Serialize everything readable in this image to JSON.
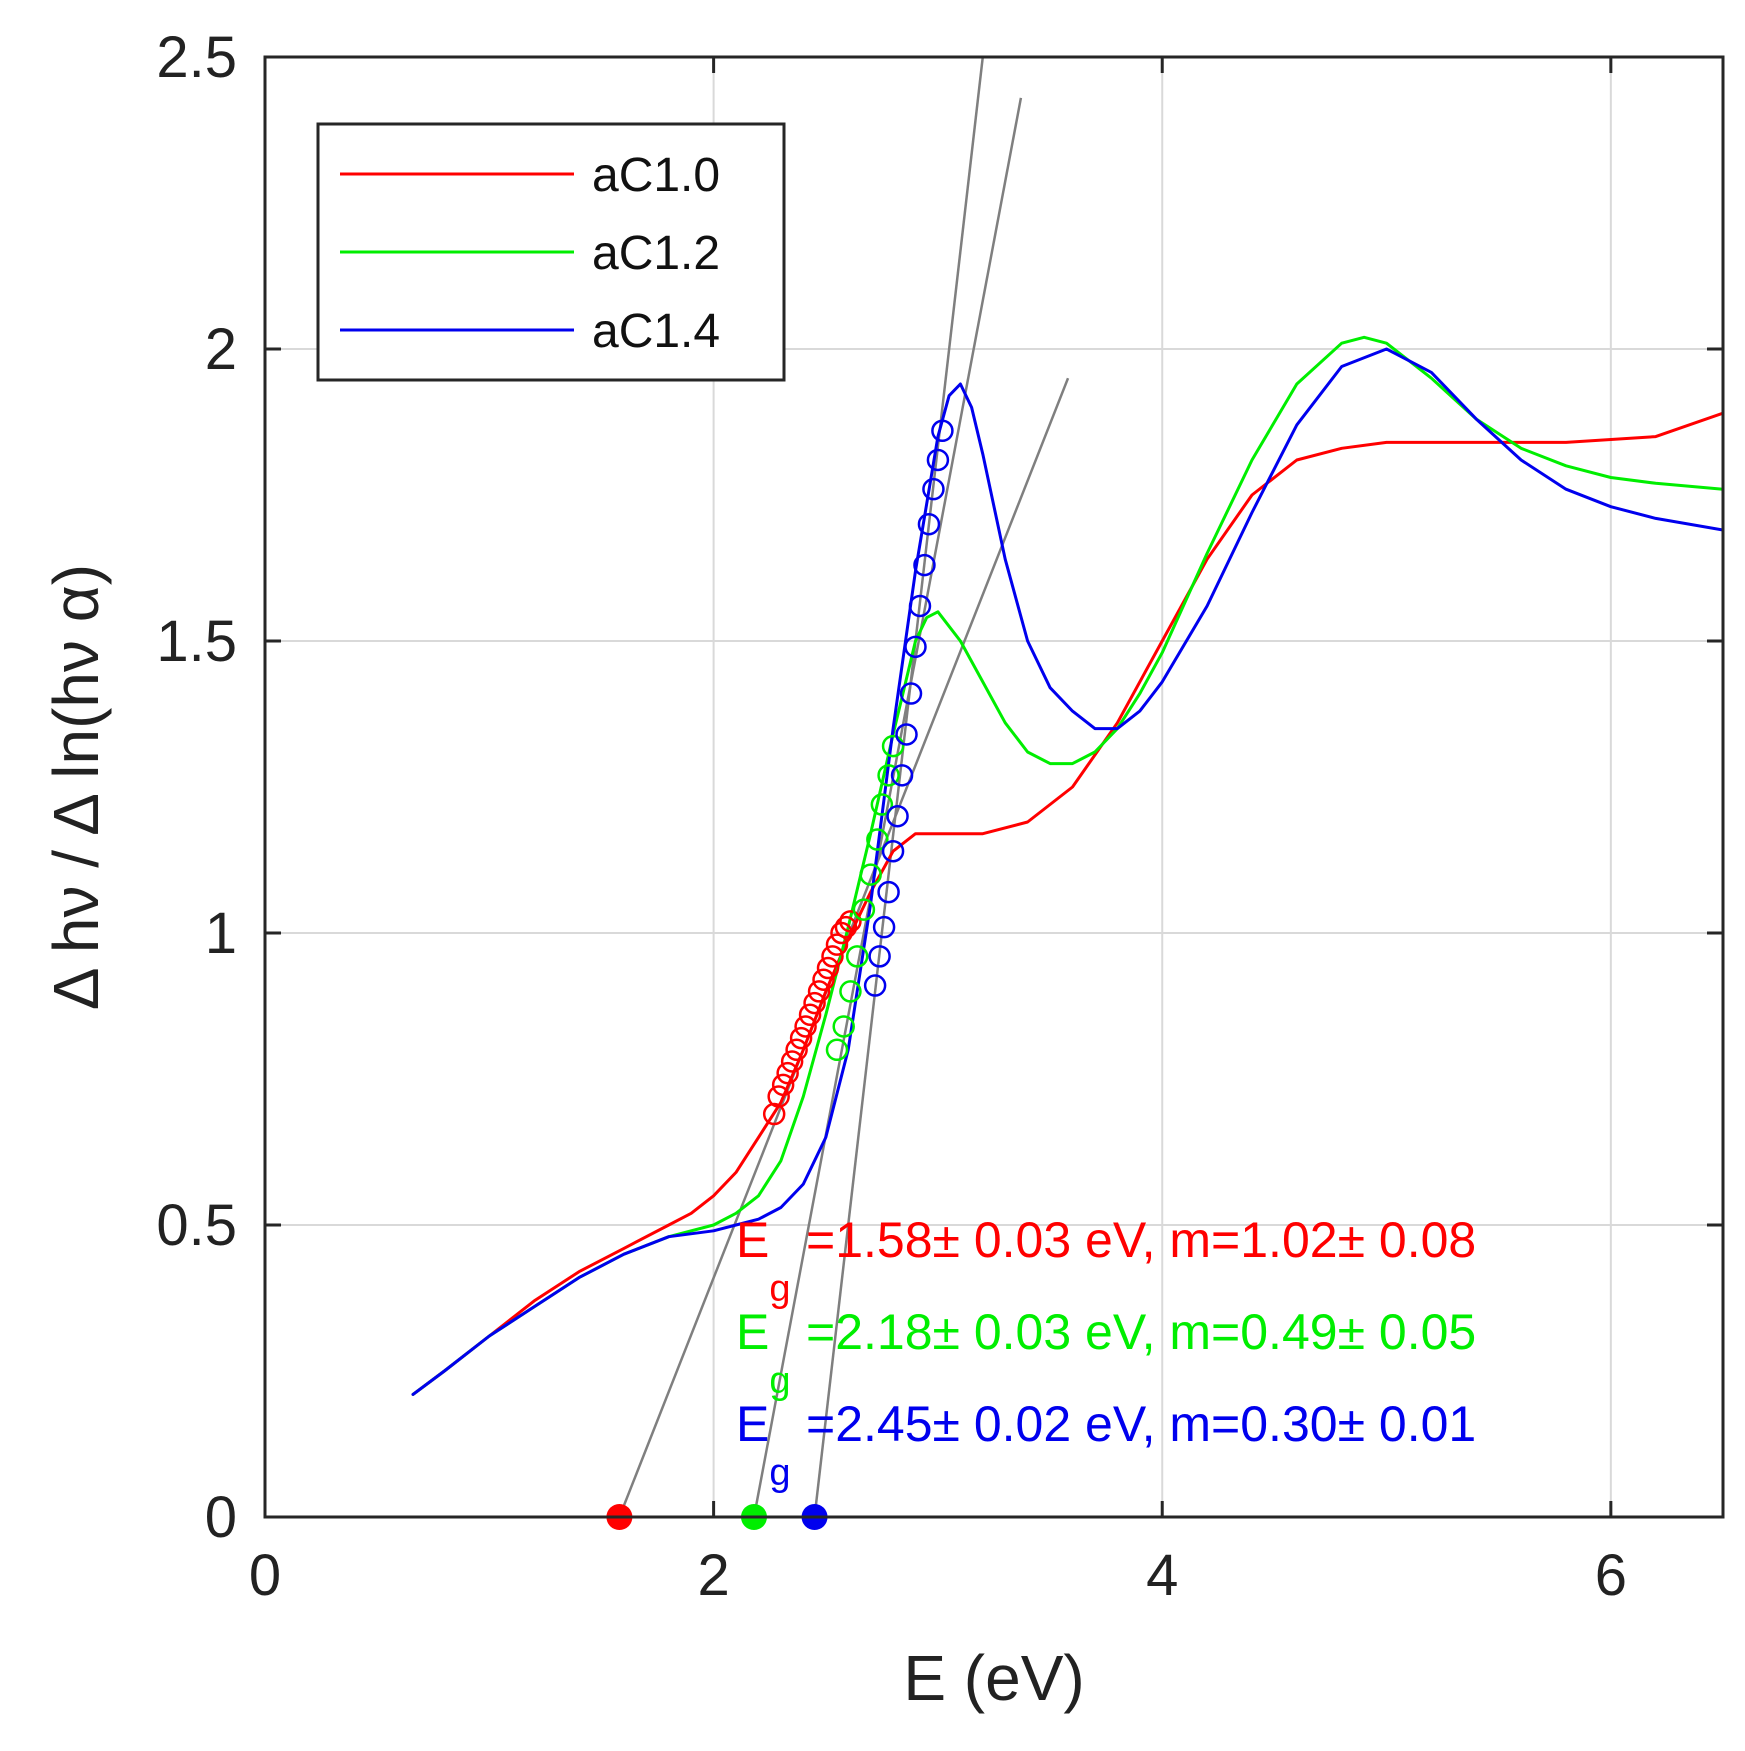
{
  "chart_data": {
    "type": "line",
    "title": "",
    "xlabel": "E (eV)",
    "ylabel": "Δ hν / Δ ln(hν α)",
    "xlim": [
      0,
      6.5
    ],
    "ylim": [
      0,
      2.5
    ],
    "xticks": [
      0,
      2,
      4,
      6
    ],
    "xtick_labels": [
      "0",
      "2",
      "4",
      "6"
    ],
    "yticks": [
      0,
      0.5,
      1,
      1.5,
      2,
      2.5
    ],
    "ytick_labels": [
      "0",
      "0.5",
      "1",
      "1.5",
      "2",
      "2.5"
    ],
    "grid": true,
    "legend_position": "top-left",
    "series": [
      {
        "name": "aC1.0",
        "color": "#ff0000",
        "x": [
          0.66,
          0.8,
          1.0,
          1.2,
          1.4,
          1.6,
          1.8,
          1.9,
          2.0,
          2.1,
          2.2,
          2.3,
          2.4,
          2.5,
          2.6,
          2.7,
          2.8,
          2.9,
          3.0,
          3.2,
          3.4,
          3.6,
          3.8,
          4.0,
          4.2,
          4.4,
          4.6,
          4.8,
          5.0,
          5.4,
          5.8,
          6.2,
          6.5
        ],
        "y": [
          0.21,
          0.25,
          0.31,
          0.37,
          0.42,
          0.46,
          0.5,
          0.52,
          0.55,
          0.59,
          0.65,
          0.71,
          0.8,
          0.9,
          0.99,
          1.07,
          1.14,
          1.17,
          1.17,
          1.17,
          1.19,
          1.25,
          1.36,
          1.5,
          1.64,
          1.75,
          1.81,
          1.83,
          1.84,
          1.84,
          1.84,
          1.85,
          1.89
        ]
      },
      {
        "name": "aC1.2",
        "color": "#00ee00",
        "x": [
          0.66,
          0.8,
          1.0,
          1.2,
          1.4,
          1.6,
          1.8,
          2.0,
          2.1,
          2.2,
          2.3,
          2.4,
          2.5,
          2.6,
          2.7,
          2.8,
          2.9,
          2.95,
          3.0,
          3.1,
          3.2,
          3.3,
          3.4,
          3.5,
          3.6,
          3.7,
          3.8,
          3.9,
          4.0,
          4.2,
          4.4,
          4.6,
          4.8,
          4.9,
          5.0,
          5.2,
          5.4,
          5.6,
          5.8,
          6.0,
          6.2,
          6.5
        ],
        "y": [
          0.21,
          0.25,
          0.31,
          0.36,
          0.41,
          0.45,
          0.48,
          0.5,
          0.52,
          0.55,
          0.61,
          0.72,
          0.86,
          1.01,
          1.17,
          1.34,
          1.5,
          1.54,
          1.55,
          1.5,
          1.43,
          1.36,
          1.31,
          1.29,
          1.29,
          1.31,
          1.35,
          1.41,
          1.48,
          1.65,
          1.81,
          1.94,
          2.01,
          2.02,
          2.01,
          1.95,
          1.88,
          1.83,
          1.8,
          1.78,
          1.77,
          1.76
        ]
      },
      {
        "name": "aC1.4",
        "color": "#0000ee",
        "x": [
          0.66,
          0.8,
          1.0,
          1.2,
          1.4,
          1.6,
          1.8,
          2.0,
          2.1,
          2.2,
          2.3,
          2.4,
          2.5,
          2.6,
          2.7,
          2.8,
          2.9,
          3.0,
          3.05,
          3.1,
          3.15,
          3.2,
          3.3,
          3.4,
          3.5,
          3.6,
          3.7,
          3.8,
          3.9,
          4.0,
          4.2,
          4.4,
          4.6,
          4.8,
          5.0,
          5.2,
          5.4,
          5.6,
          5.8,
          6.0,
          6.2,
          6.5
        ],
        "y": [
          0.21,
          0.25,
          0.31,
          0.36,
          0.41,
          0.45,
          0.48,
          0.49,
          0.5,
          0.51,
          0.53,
          0.57,
          0.65,
          0.8,
          1.05,
          1.35,
          1.62,
          1.85,
          1.92,
          1.94,
          1.9,
          1.82,
          1.64,
          1.5,
          1.42,
          1.38,
          1.35,
          1.35,
          1.38,
          1.43,
          1.56,
          1.72,
          1.87,
          1.97,
          2.0,
          1.96,
          1.88,
          1.81,
          1.76,
          1.73,
          1.71,
          1.69
        ]
      }
    ],
    "fit_points": [
      {
        "series": "aC1.0",
        "color": "#ff0000",
        "x": [
          2.27,
          2.29,
          2.31,
          2.33,
          2.35,
          2.37,
          2.39,
          2.41,
          2.43,
          2.45,
          2.47,
          2.49,
          2.51,
          2.53,
          2.55,
          2.57,
          2.59,
          2.61
        ],
        "y": [
          0.69,
          0.72,
          0.74,
          0.76,
          0.78,
          0.8,
          0.82,
          0.84,
          0.86,
          0.88,
          0.9,
          0.92,
          0.94,
          0.96,
          0.98,
          1.0,
          1.01,
          1.02
        ]
      },
      {
        "series": "aC1.2",
        "color": "#00ee00",
        "x": [
          2.55,
          2.58,
          2.61,
          2.64,
          2.67,
          2.7,
          2.73,
          2.75,
          2.78,
          2.8
        ],
        "y": [
          0.8,
          0.84,
          0.9,
          0.96,
          1.04,
          1.1,
          1.16,
          1.22,
          1.27,
          1.32
        ]
      },
      {
        "series": "aC1.4",
        "color": "#0000ee",
        "x": [
          2.72,
          2.74,
          2.76,
          2.78,
          2.8,
          2.82,
          2.84,
          2.86,
          2.88,
          2.9,
          2.92,
          2.94,
          2.96,
          2.98,
          3.0,
          3.02
        ],
        "y": [
          0.91,
          0.96,
          1.01,
          1.07,
          1.14,
          1.2,
          1.27,
          1.34,
          1.41,
          1.49,
          1.56,
          1.63,
          1.7,
          1.76,
          1.81,
          1.86
        ]
      }
    ],
    "fit_lines": [
      {
        "series": "aC1.0",
        "color": "#7f7f7f",
        "x": [
          1.58,
          3.58
        ],
        "y": [
          0.0,
          1.95
        ]
      },
      {
        "series": "aC1.2",
        "color": "#7f7f7f",
        "x": [
          2.18,
          3.37
        ],
        "y": [
          0.0,
          2.43
        ]
      },
      {
        "series": "aC1.4",
        "color": "#7f7f7f",
        "x": [
          2.45,
          3.2
        ],
        "y": [
          0.0,
          2.5
        ]
      }
    ],
    "gap_markers": [
      {
        "series": "aC1.0",
        "color": "#ff0000",
        "x": 1.58,
        "y": 0
      },
      {
        "series": "aC1.2",
        "color": "#00ee00",
        "x": 2.18,
        "y": 0
      },
      {
        "series": "aC1.4",
        "color": "#0000ee",
        "x": 2.45,
        "y": 0
      }
    ],
    "annotations": [
      {
        "series": "aC1.0",
        "color": "#ff0000",
        "main": "E",
        "sub": "g",
        "rest": "=1.58± 0.03 eV, m=1.02± 0.08"
      },
      {
        "series": "aC1.2",
        "color": "#00ee00",
        "main": "E",
        "sub": "g",
        "rest": "=2.18± 0.03 eV, m=0.49± 0.05"
      },
      {
        "series": "aC1.4",
        "color": "#0000ee",
        "main": "E",
        "sub": "g",
        "rest": "=2.45± 0.02 eV, m=0.30± 0.01"
      }
    ]
  }
}
